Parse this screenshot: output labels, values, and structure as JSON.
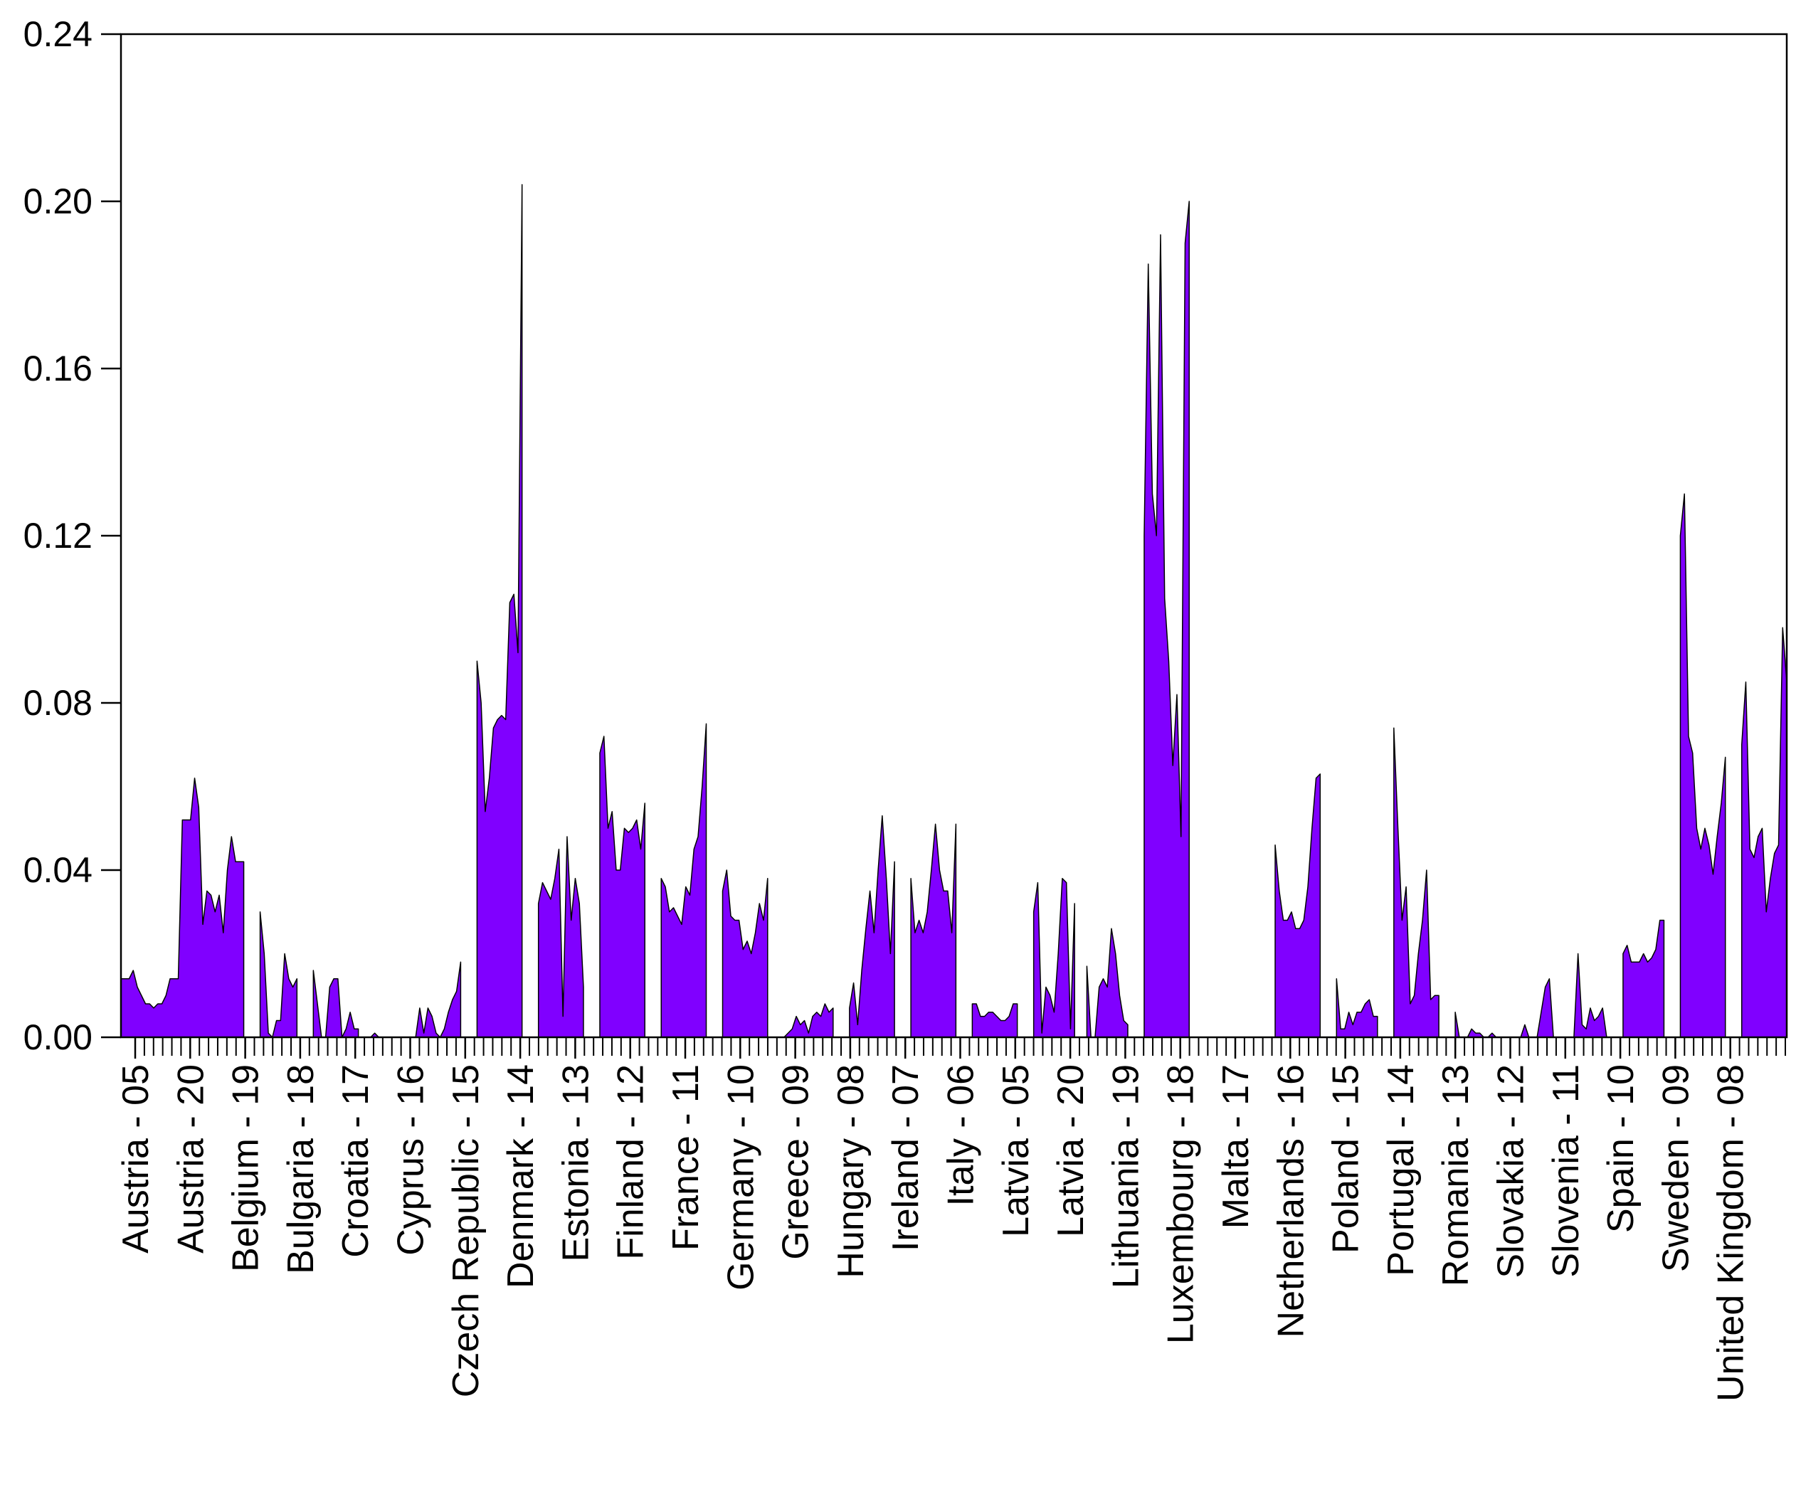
{
  "chart_data": {
    "type": "area",
    "title": "",
    "xlabel": "",
    "ylabel": "",
    "ylim": [
      0,
      0.24
    ],
    "y_ticks": [
      "0.00",
      "0.04",
      "0.08",
      "0.12",
      "0.16",
      "0.20",
      "0.24"
    ],
    "grid": false,
    "legend": "none",
    "fill_color": "#8000ff",
    "line_color": "#000000",
    "x_tick_labels": [
      "Austria - 05",
      "Austria - 20",
      "Belgium - 19",
      "Bulgaria - 18",
      "Croatia - 17",
      "Cyprus - 16",
      "Czech Republic - 15",
      "Denmark - 14",
      "Estonia - 13",
      "Finland - 12",
      "France - 11",
      "Germany - 10",
      "Greece - 09",
      "Hungary - 08",
      "Ireland - 07",
      "Italy - 06",
      "Latvia - 05",
      "Latvia - 20",
      "Lithuania - 19",
      "Luxembourg - 18",
      "Malta - 17",
      "Netherlands - 16",
      "Poland - 15",
      "Portugal - 14",
      "Romania - 13",
      "Slovakia - 12",
      "Slovenia - 11",
      "Spain - 10",
      "Sweden - 09",
      "United Kingdom - 08"
    ],
    "series": [
      {
        "values": [
          0.014,
          0.014,
          0.014,
          0.016,
          0.012,
          0.01,
          0.008,
          0.008,
          0.007,
          0.008,
          0.008,
          0.01,
          0.014,
          0.014,
          0.014,
          0.052,
          0.052,
          0.052,
          0.062,
          0.055,
          0.027,
          0.035,
          0.034,
          0.03,
          0.034,
          0.025,
          0.04,
          0.048,
          0.042,
          0.042,
          0.042,
          null,
          null,
          null,
          0.03,
          0.02,
          0.001,
          0.0,
          0.004,
          0.004,
          0.02,
          0.014,
          0.012,
          0.014,
          null,
          null,
          null,
          0.016,
          0.008,
          0.0,
          0.0,
          0.012,
          0.014,
          0.014,
          0.0,
          0.002,
          0.006,
          0.002,
          0.002,
          null,
          0.0,
          0.0,
          0.001,
          0.0,
          0.0,
          0.0,
          0.0,
          0.0,
          0.0,
          0.0,
          0.0,
          0.0,
          0.0,
          0.007,
          0.001,
          0.007,
          0.005,
          0.001,
          0.0,
          0.002,
          0.006,
          0.009,
          0.011,
          0.018,
          null,
          null,
          null,
          0.09,
          0.08,
          0.054,
          0.062,
          0.074,
          0.076,
          0.077,
          0.076,
          0.104,
          0.106,
          0.092,
          0.204,
          null,
          null,
          null,
          0.032,
          0.037,
          0.035,
          0.033,
          0.038,
          0.045,
          0.005,
          0.048,
          0.028,
          0.038,
          0.032,
          0.012,
          null,
          null,
          null,
          0.068,
          0.072,
          0.05,
          0.054,
          0.04,
          0.04,
          0.05,
          0.049,
          0.05,
          0.052,
          0.045,
          0.056,
          null,
          null,
          null,
          0.038,
          0.036,
          0.03,
          0.031,
          0.029,
          0.027,
          0.036,
          0.034,
          0.045,
          0.048,
          0.06,
          0.075,
          null,
          null,
          null,
          0.035,
          0.04,
          0.029,
          0.028,
          0.028,
          0.021,
          0.023,
          0.02,
          0.025,
          0.032,
          0.028,
          0.038,
          null,
          null,
          null,
          0.0,
          0.001,
          0.002,
          0.005,
          0.003,
          0.004,
          0.001,
          0.005,
          0.006,
          0.005,
          0.008,
          0.006,
          0.007,
          null,
          null,
          null,
          0.007,
          0.013,
          0.003,
          0.016,
          0.026,
          0.035,
          0.025,
          0.04,
          0.053,
          0.038,
          0.02,
          0.042,
          null,
          null,
          null,
          0.038,
          0.025,
          0.028,
          0.025,
          0.03,
          0.04,
          0.051,
          0.04,
          0.035,
          0.035,
          0.025,
          0.051,
          null,
          null,
          null,
          0.008,
          0.008,
          0.005,
          0.005,
          0.006,
          0.006,
          0.005,
          0.004,
          0.004,
          0.005,
          0.008,
          0.008,
          null,
          null,
          null,
          0.03,
          0.037,
          0.001,
          0.012,
          0.01,
          0.006,
          0.02,
          0.038,
          0.037,
          0.002,
          0.032,
          null,
          null,
          0.017,
          0.0,
          0.0,
          0.012,
          0.014,
          0.012,
          0.026,
          0.02,
          0.01,
          0.004,
          0.003,
          null,
          null,
          null,
          0.12,
          0.185,
          0.13,
          0.12,
          0.192,
          0.105,
          0.09,
          0.065,
          0.082,
          0.048,
          0.19,
          0.2,
          null,
          null,
          null,
          0.0,
          0.0,
          0.0,
          0.0,
          0.0,
          0.0,
          0.0,
          0.0,
          0.0,
          0.0,
          0.0,
          0.0,
          0.0,
          0.0,
          null,
          null,
          null,
          0.046,
          0.035,
          0.028,
          0.028,
          0.03,
          0.026,
          0.026,
          0.028,
          0.036,
          0.05,
          0.062,
          0.063,
          null,
          null,
          null,
          0.014,
          0.002,
          0.002,
          0.006,
          0.003,
          0.006,
          0.006,
          0.008,
          0.009,
          0.005,
          0.005,
          null,
          null,
          null,
          0.074,
          0.05,
          0.028,
          0.036,
          0.008,
          0.01,
          0.02,
          0.028,
          0.04,
          0.009,
          0.01,
          0.01,
          null,
          null,
          null,
          0.006,
          0.0,
          0.0,
          0.0,
          0.002,
          0.001,
          0.001,
          0.0,
          0.0,
          0.001,
          0.0,
          0.0,
          0.0,
          0.0,
          0.0,
          0.0,
          0.0,
          0.003,
          0.0,
          0.0,
          0.0,
          0.006,
          0.012,
          0.014,
          0.0,
          0.0,
          0.0,
          0.0,
          0.0,
          0.0,
          0.02,
          0.003,
          0.002,
          0.007,
          0.004,
          0.005,
          0.007,
          0.0,
          null,
          null,
          null,
          0.02,
          0.022,
          0.018,
          0.018,
          0.018,
          0.02,
          0.018,
          0.019,
          0.021,
          0.028,
          0.028,
          null,
          null,
          null,
          0.12,
          0.13,
          0.072,
          0.068,
          0.05,
          0.045,
          0.05,
          0.046,
          0.039,
          0.048,
          0.056,
          0.067,
          null,
          null,
          null,
          0.07,
          0.085,
          0.045,
          0.043,
          0.048,
          0.05,
          0.03,
          0.038,
          0.044,
          0.046,
          0.098,
          0.085
        ]
      }
    ]
  }
}
